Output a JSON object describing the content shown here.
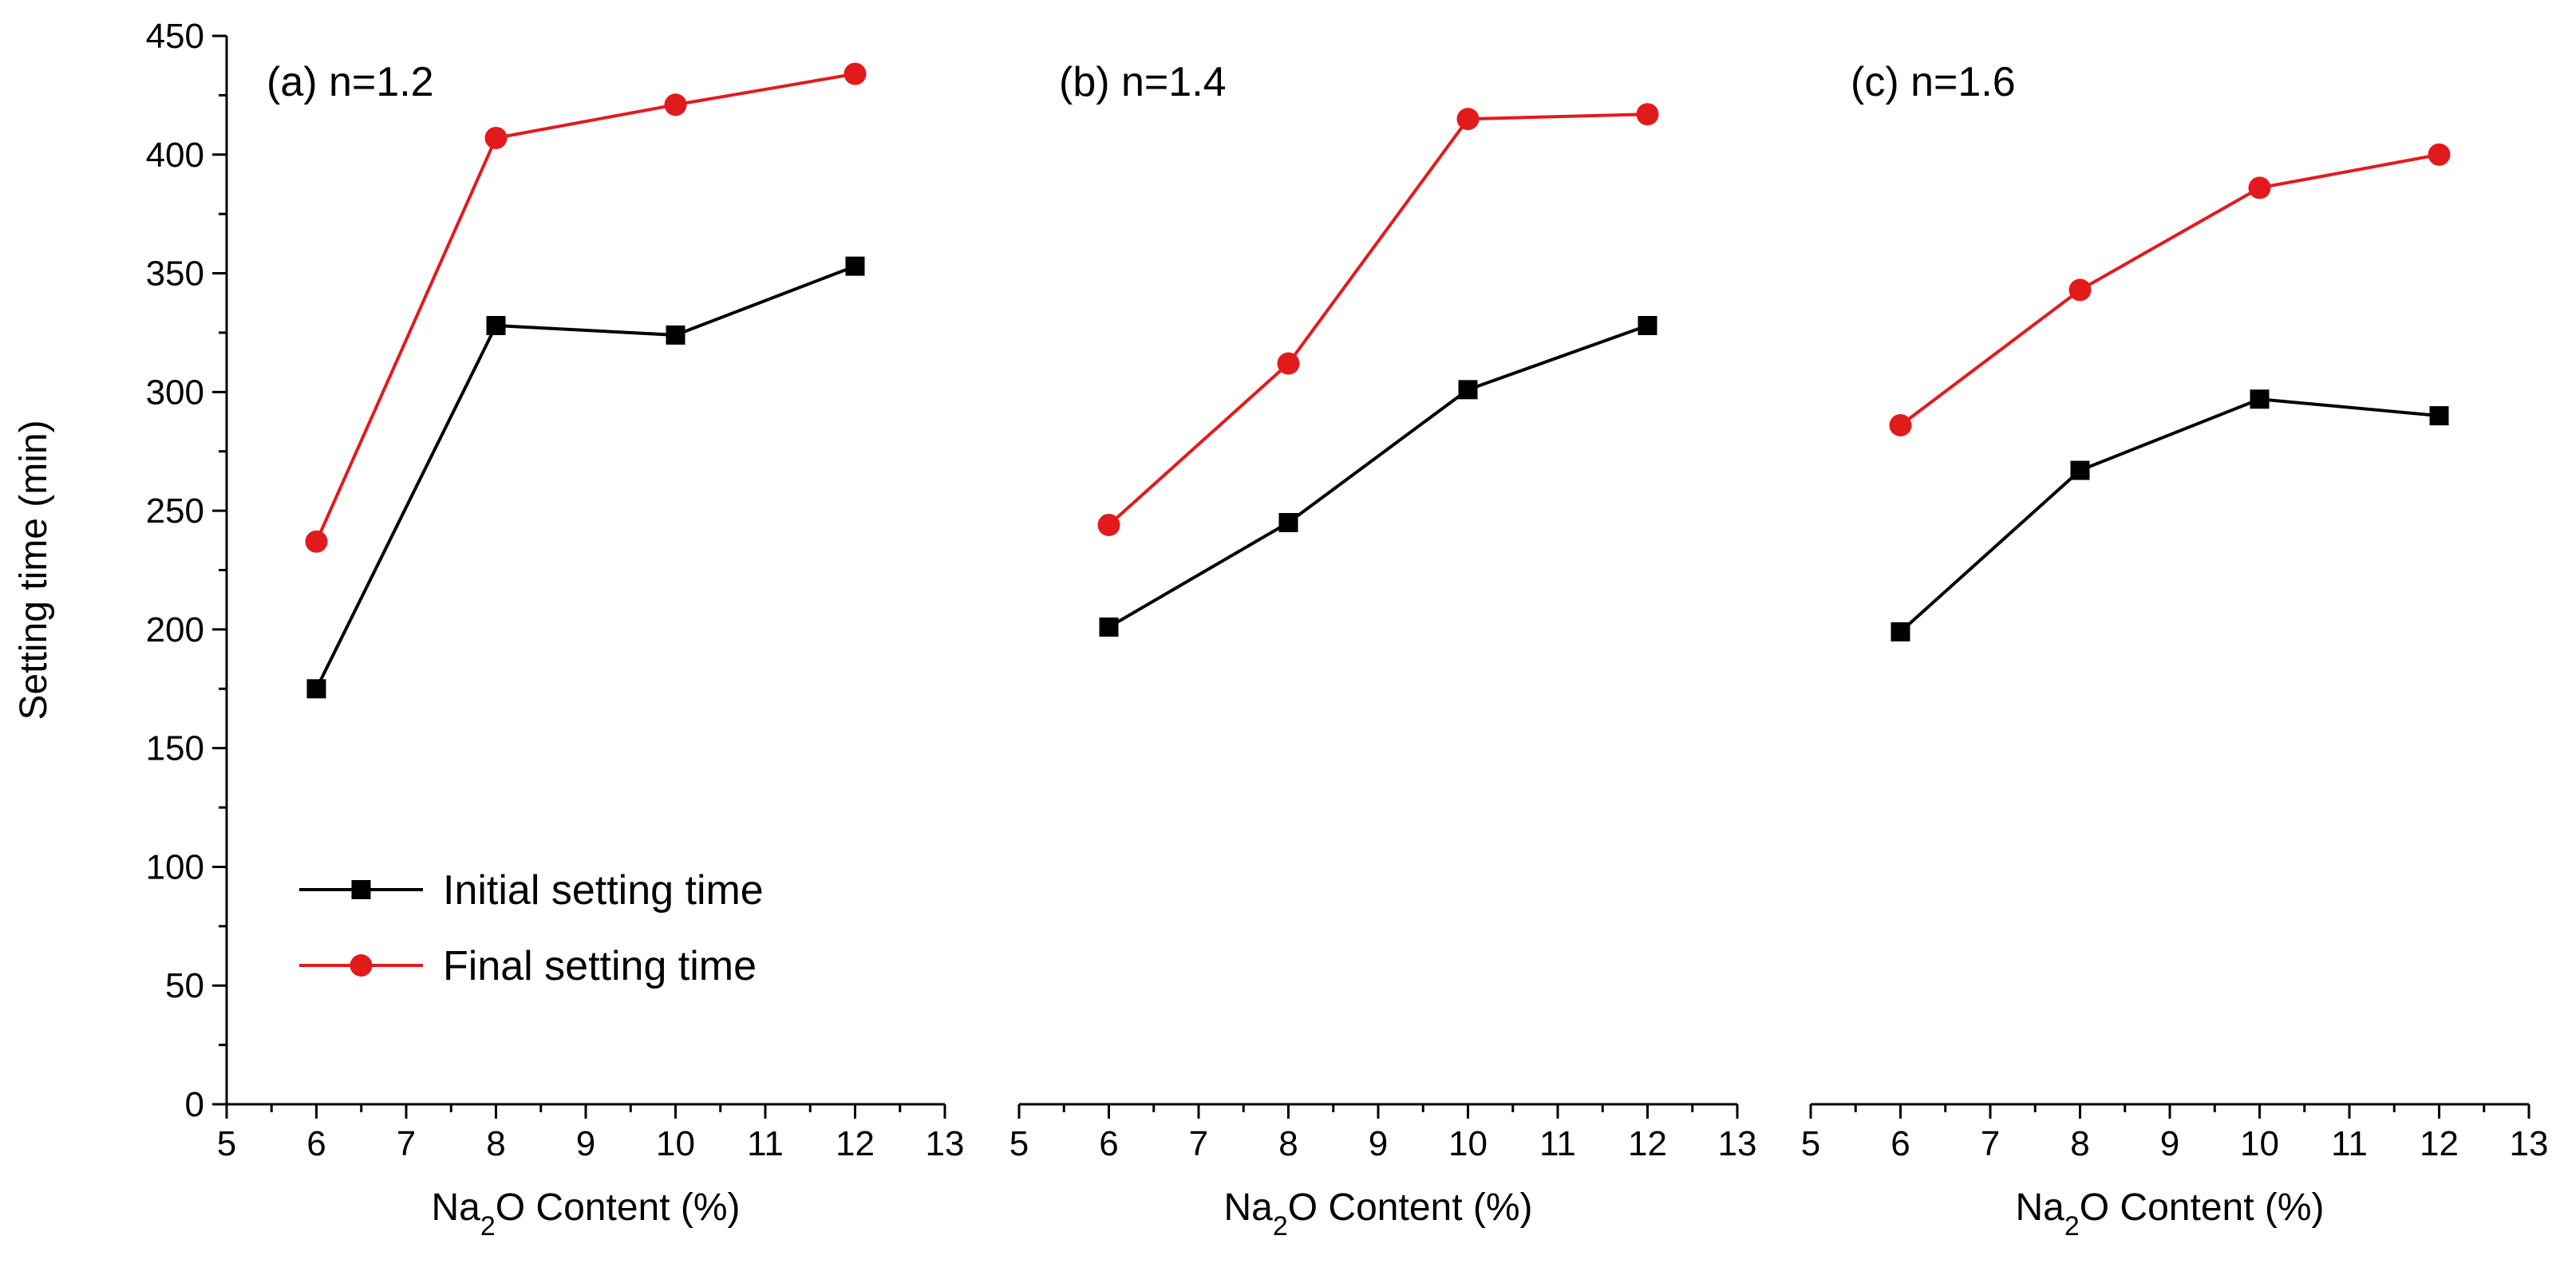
{
  "chart_data": [
    {
      "type": "line",
      "panel_label": "(a) n=1.2",
      "xlabel_prefix": "Na",
      "xlabel_sub": "2",
      "xlabel_suffix": "O Content (%)",
      "ylabel": "Setting time (min)",
      "xlim": [
        5,
        13
      ],
      "ylim": [
        0,
        450
      ],
      "x": [
        6,
        8,
        10,
        12
      ],
      "series": [
        {
          "name": "Initial setting time",
          "color": "#000000",
          "marker": "square",
          "values": [
            175,
            328,
            324,
            353
          ]
        },
        {
          "name": "Final setting time",
          "color": "#e31a1c",
          "marker": "circle",
          "values": [
            237,
            407,
            421,
            434
          ]
        }
      ]
    },
    {
      "type": "line",
      "panel_label": "(b) n=1.4",
      "xlabel_prefix": "Na",
      "xlabel_sub": "2",
      "xlabel_suffix": "O Content (%)",
      "xlim": [
        5,
        13
      ],
      "ylim": [
        0,
        450
      ],
      "x": [
        6,
        8,
        10,
        12
      ],
      "series": [
        {
          "name": "Initial setting time",
          "color": "#000000",
          "marker": "square",
          "values": [
            201,
            245,
            301,
            328
          ]
        },
        {
          "name": "Final setting time",
          "color": "#e31a1c",
          "marker": "circle",
          "values": [
            244,
            312,
            415,
            417
          ]
        }
      ]
    },
    {
      "type": "line",
      "panel_label": "(c) n=1.6",
      "xlabel_prefix": "Na",
      "xlabel_sub": "2",
      "xlabel_suffix": "O Content (%)",
      "xlim": [
        5,
        13
      ],
      "ylim": [
        0,
        450
      ],
      "x": [
        6,
        8,
        10,
        12
      ],
      "series": [
        {
          "name": "Initial setting time",
          "color": "#000000",
          "marker": "square",
          "values": [
            199,
            267,
            297,
            290
          ]
        },
        {
          "name": "Final setting time",
          "color": "#e31a1c",
          "marker": "circle",
          "values": [
            286,
            343,
            386,
            400
          ]
        }
      ]
    }
  ],
  "legend": {
    "location": "lower-left of panel (a)",
    "entries": [
      {
        "label": "Initial setting time",
        "color": "#000000",
        "marker": "square"
      },
      {
        "label": "Final setting time",
        "color": "#e31a1c",
        "marker": "circle"
      }
    ]
  },
  "y_ticks": [
    0,
    50,
    100,
    150,
    200,
    250,
    300,
    350,
    400,
    450
  ],
  "x_ticks": [
    5,
    6,
    7,
    8,
    9,
    10,
    11,
    12,
    13
  ]
}
